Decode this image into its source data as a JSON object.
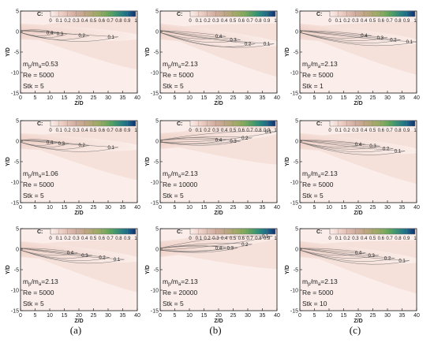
{
  "captions": [
    "(a)",
    "(b)",
    "(c)"
  ],
  "colorbar": {
    "label": "C:",
    "ticks": [
      "0",
      "0.1",
      "0.2",
      "0.3",
      "0.4",
      "0.5",
      "0.6",
      "0.7",
      "0.8",
      "0.9",
      "1"
    ],
    "colors": [
      "#fbeeea",
      "#f1d5cc",
      "#e2bfb4",
      "#d2ad9e",
      "#c2a688",
      "#aca86f",
      "#8fab5f",
      "#5fa45e",
      "#2f8f7a",
      "#1e6a8a",
      "#12306e"
    ]
  },
  "chart_data": [
    {
      "panel": "a",
      "type": "heatmap",
      "ylabel": "Y/D",
      "xlabel": "Z/D",
      "xlim": [
        0,
        40
      ],
      "ylim": [
        -15,
        5
      ],
      "xticks": [
        "0",
        "5",
        "10",
        "15",
        "20",
        "25",
        "30",
        "35",
        "40"
      ],
      "yticks": [
        "5",
        "0",
        "-5",
        "-10",
        "-15"
      ],
      "params": [
        "m_p/m_a=0.53",
        "Re = 5000",
        "Stk = 5"
      ],
      "contour_labels": [
        {
          "text": "0.4",
          "x": 10,
          "y": -0.3
        },
        {
          "text": "0.3",
          "x": 13.5,
          "y": -0.6
        },
        {
          "text": "0.2",
          "x": 21,
          "y": -1.0
        },
        {
          "text": "0.1",
          "x": 31,
          "y": -1.3
        }
      ]
    },
    {
      "panel": "b",
      "type": "heatmap",
      "ylabel": "Y/D",
      "xlabel": "Z/D",
      "xlim": [
        0,
        40
      ],
      "ylim": [
        -15,
        5
      ],
      "xticks": [
        "0",
        "5",
        "10",
        "15",
        "20",
        "25",
        "30",
        "35",
        "40"
      ],
      "yticks": [
        "5",
        "0",
        "-5",
        "-10",
        "-15"
      ],
      "params": [
        "m_p/m_a=2.13",
        "Re = 5000",
        "Stk = 5"
      ],
      "contour_labels": [
        {
          "text": "0.4",
          "x": 20,
          "y": -1.2
        },
        {
          "text": "0.3",
          "x": 25,
          "y": -2.0
        },
        {
          "text": "0.2",
          "x": 30,
          "y": -3.0
        },
        {
          "text": "0.1",
          "x": 36.5,
          "y": -3.0
        }
      ]
    },
    {
      "panel": "c",
      "type": "heatmap",
      "ylabel": "Y/D",
      "xlabel": "Z/D",
      "xlim": [
        0,
        40
      ],
      "ylim": [
        -15,
        5
      ],
      "xticks": [
        "0",
        "5",
        "10",
        "15",
        "20",
        "25",
        "30",
        "35",
        "40"
      ],
      "yticks": [
        "5",
        "0",
        "-5",
        "-10",
        "-15"
      ],
      "params": [
        "m_p/m_a=2.13",
        "Re = 5000",
        "Stk = 1"
      ],
      "contour_labels": [
        {
          "text": "0.4",
          "x": 22,
          "y": -1.0
        },
        {
          "text": "0.3",
          "x": 27.5,
          "y": -1.5
        },
        {
          "text": "0.2",
          "x": 32,
          "y": -2.0
        },
        {
          "text": "0.1",
          "x": 37.5,
          "y": -2.5
        }
      ]
    },
    {
      "panel": "d",
      "type": "heatmap",
      "ylabel": "Y/D",
      "xlabel": "Z/D",
      "xlim": [
        0,
        40
      ],
      "ylim": [
        -15,
        5
      ],
      "xticks": [
        "0",
        "5",
        "10",
        "15",
        "20",
        "25",
        "30",
        "35",
        "40"
      ],
      "yticks": [
        "5",
        "0",
        "-5",
        "-10",
        "-15"
      ],
      "params": [
        "m_p/m_a=1.06",
        "Re = 5000",
        "Stk = 5"
      ],
      "contour_labels": [
        {
          "text": "0.4",
          "x": 10,
          "y": -0.3
        },
        {
          "text": "0.3",
          "x": 14,
          "y": -0.6
        },
        {
          "text": "0.2",
          "x": 21,
          "y": -1.0
        },
        {
          "text": "0.1",
          "x": 31,
          "y": -1.5
        }
      ]
    },
    {
      "panel": "e",
      "type": "heatmap",
      "ylabel": "Y/D",
      "xlabel": "Z/D",
      "xlim": [
        0,
        40
      ],
      "ylim": [
        -15,
        5
      ],
      "xticks": [
        "0",
        "5",
        "10",
        "15",
        "20",
        "25",
        "30",
        "35",
        "40"
      ],
      "yticks": [
        "5",
        "0",
        "-5",
        "-10",
        "-15"
      ],
      "params": [
        "m_p/m_a=2.13",
        "Re = 10000",
        "Stk = 5"
      ],
      "contour_labels": [
        {
          "text": "0.4",
          "x": 20,
          "y": 0.3
        },
        {
          "text": "0.3",
          "x": 25,
          "y": 0.0
        },
        {
          "text": "0.2",
          "x": 29,
          "y": 0.8
        },
        {
          "text": "0.1",
          "x": 37,
          "y": 2.3
        }
      ]
    },
    {
      "panel": "f",
      "type": "heatmap",
      "ylabel": "Y/D",
      "xlabel": "Z/D",
      "xlim": [
        0,
        40
      ],
      "ylim": [
        -15,
        5
      ],
      "xticks": [
        "0",
        "5",
        "10",
        "15",
        "20",
        "25",
        "30",
        "35",
        "40"
      ],
      "yticks": [
        "5",
        "0",
        "-5",
        "-10",
        "-15"
      ],
      "params": [
        "m_p/m_a=2.13",
        "Re = 5000",
        "Stk = 5"
      ],
      "contour_labels": [
        {
          "text": "0.4",
          "x": 20,
          "y": -0.8
        },
        {
          "text": "0.3",
          "x": 25,
          "y": -1.2
        },
        {
          "text": "0.2",
          "x": 29.5,
          "y": -1.8
        },
        {
          "text": "0.1",
          "x": 33.5,
          "y": -2.4
        }
      ]
    },
    {
      "panel": "g",
      "type": "heatmap",
      "ylabel": "Y/D",
      "xlabel": "Z/D",
      "xlim": [
        0,
        40
      ],
      "ylim": [
        -15,
        5
      ],
      "xticks": [
        "0",
        "5",
        "10",
        "15",
        "20",
        "25",
        "30",
        "35",
        "40"
      ],
      "yticks": [
        "5",
        "0",
        "-5",
        "-10",
        "-15"
      ],
      "params": [
        "m_p/m_a=2.13",
        "Re = 5000",
        "Stk = 5"
      ],
      "contour_labels": [
        {
          "text": "0.4",
          "x": 17,
          "y": -0.9
        },
        {
          "text": "0.3",
          "x": 22,
          "y": -1.5
        },
        {
          "text": "0.2",
          "x": 28,
          "y": -2.0
        },
        {
          "text": "0.1",
          "x": 33,
          "y": -2.5
        }
      ]
    },
    {
      "panel": "h",
      "type": "heatmap",
      "ylabel": "Y/D",
      "xlabel": "Z/D",
      "xlim": [
        0,
        40
      ],
      "ylim": [
        -15,
        5
      ],
      "xticks": [
        "0",
        "5",
        "10",
        "15",
        "20",
        "25",
        "30",
        "35",
        "40"
      ],
      "yticks": [
        "5",
        "0",
        "-5",
        "-10",
        "-15"
      ],
      "params": [
        "m_p/m_a=2.13",
        "Re = 20000",
        "Stk = 5"
      ],
      "contour_labels": [
        {
          "text": "0.4",
          "x": 20,
          "y": 0.3
        },
        {
          "text": "0.3",
          "x": 24,
          "y": 0.3
        },
        {
          "text": "0.2",
          "x": 29,
          "y": 1.2
        },
        {
          "text": "0.1",
          "x": 36,
          "y": 3.2
        }
      ]
    },
    {
      "panel": "i",
      "type": "heatmap",
      "ylabel": "Y/D",
      "xlabel": "Z/D",
      "xlim": [
        0,
        40
      ],
      "ylim": [
        -15,
        5
      ],
      "xticks": [
        "0",
        "5",
        "10",
        "15",
        "20",
        "25",
        "30",
        "35",
        "40"
      ],
      "yticks": [
        "5",
        "0",
        "-5",
        "-10",
        "-15"
      ],
      "params": [
        "m_p/m_a=2.13",
        "Re = 5000",
        "Stk = 10"
      ],
      "contour_labels": [
        {
          "text": "0.4",
          "x": 20,
          "y": -0.9
        },
        {
          "text": "0.3",
          "x": 24.5,
          "y": -1.5
        },
        {
          "text": "0.2",
          "x": 30,
          "y": -2.2
        },
        {
          "text": "0.1",
          "x": 35,
          "y": -2.8
        }
      ]
    }
  ]
}
